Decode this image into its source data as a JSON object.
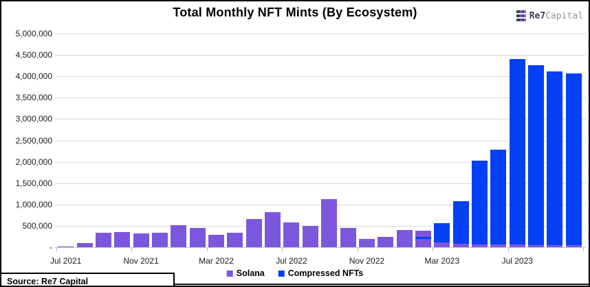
{
  "header": {
    "logo": {
      "brand_bold": "Re7",
      "brand_light": "Capital"
    }
  },
  "footer": {
    "source": "Source: Re7 Capital"
  },
  "chart_data": {
    "type": "bar",
    "stacked": true,
    "title": "Total Monthly NFT Mints (By Ecosystem)",
    "legend_position": "bottom",
    "grid": true,
    "y_axis": {
      "min": 0,
      "max": 5000000,
      "step": 500000,
      "tick_labels": [
        "-",
        "500,000",
        "1,000,000",
        "1,500,000",
        "2,000,000",
        "2,500,000",
        "3,000,000",
        "3,500,000",
        "4,000,000",
        "4,500,000",
        "5,000,000"
      ]
    },
    "x_tick_labels": [
      "Jul 2021",
      "Nov 2021",
      "Mar 2022",
      "Jul 2022",
      "Nov 2022",
      "Mar 2023",
      "Jul 2023"
    ],
    "x_tick_column_indices": [
      0,
      4,
      8,
      12,
      16,
      20,
      24
    ],
    "series_colors": {
      "solana": "#7c57de",
      "compressed": "#0540f4"
    },
    "legend": [
      {
        "key": "solana",
        "label": "Solana"
      },
      {
        "key": "compressed",
        "label": "Compressed NFTs"
      }
    ],
    "months": [
      {
        "label": "Jul 2021",
        "segments": [
          [
            "solana",
            10000
          ]
        ]
      },
      {
        "label": "Aug 2021",
        "segments": [
          [
            "solana",
            100000
          ]
        ]
      },
      {
        "label": "Sep 2021",
        "segments": [
          [
            "solana",
            335000
          ]
        ]
      },
      {
        "label": "Oct 2021",
        "segments": [
          [
            "solana",
            360000
          ]
        ]
      },
      {
        "label": "Nov 2021",
        "segments": [
          [
            "solana",
            320000
          ]
        ]
      },
      {
        "label": "Dec 2021",
        "segments": [
          [
            "solana",
            345000
          ]
        ]
      },
      {
        "label": "Jan 2022",
        "segments": [
          [
            "solana",
            515000
          ]
        ]
      },
      {
        "label": "Feb 2022",
        "segments": [
          [
            "solana",
            450000
          ]
        ]
      },
      {
        "label": "Mar 2022",
        "segments": [
          [
            "solana",
            290000
          ]
        ]
      },
      {
        "label": "Apr 2022",
        "segments": [
          [
            "solana",
            345000
          ]
        ]
      },
      {
        "label": "May 2022",
        "segments": [
          [
            "solana",
            665000
          ]
        ]
      },
      {
        "label": "Jun 2022",
        "segments": [
          [
            "solana",
            815000
          ]
        ]
      },
      {
        "label": "Jul 2022",
        "segments": [
          [
            "solana",
            585000
          ]
        ]
      },
      {
        "label": "Aug 2022",
        "segments": [
          [
            "solana",
            505000
          ]
        ]
      },
      {
        "label": "Sep 2022",
        "segments": [
          [
            "solana",
            1130000
          ]
        ]
      },
      {
        "label": "Oct 2022",
        "segments": [
          [
            "solana",
            450000
          ]
        ]
      },
      {
        "label": "Nov 2022",
        "segments": [
          [
            "solana",
            195000
          ]
        ]
      },
      {
        "label": "Dec 2022",
        "segments": [
          [
            "solana",
            245000
          ]
        ]
      },
      {
        "label": "Jan 2023",
        "segments": [
          [
            "solana",
            410000
          ]
        ]
      },
      {
        "label": "Feb 2023",
        "segments": [
          [
            "solana",
            195000
          ],
          [
            "compressed",
            45000
          ],
          [
            "solana",
            140000
          ]
        ]
      },
      {
        "label": "Mar 2023",
        "segments": [
          [
            "solana",
            115000
          ],
          [
            "compressed",
            455000
          ]
        ]
      },
      {
        "label": "Apr 2023",
        "segments": [
          [
            "solana",
            80000
          ],
          [
            "compressed",
            1000000
          ]
        ]
      },
      {
        "label": "May 2023",
        "segments": [
          [
            "solana",
            70000
          ],
          [
            "compressed",
            1960000
          ]
        ]
      },
      {
        "label": "Jun 2023",
        "segments": [
          [
            "solana",
            65000
          ],
          [
            "compressed",
            2215000
          ]
        ]
      },
      {
        "label": "Jul 2023",
        "segments": [
          [
            "solana",
            70000
          ],
          [
            "compressed",
            4330000
          ]
        ]
      },
      {
        "label": "Aug 2023",
        "segments": [
          [
            "solana",
            50000
          ],
          [
            "compressed",
            4215000
          ]
        ]
      },
      {
        "label": "Sep 2023",
        "segments": [
          [
            "solana",
            55000
          ],
          [
            "compressed",
            4065000
          ]
        ]
      },
      {
        "label": "Oct 2023",
        "segments": [
          [
            "solana",
            45000
          ],
          [
            "compressed",
            4025000
          ]
        ]
      }
    ]
  }
}
